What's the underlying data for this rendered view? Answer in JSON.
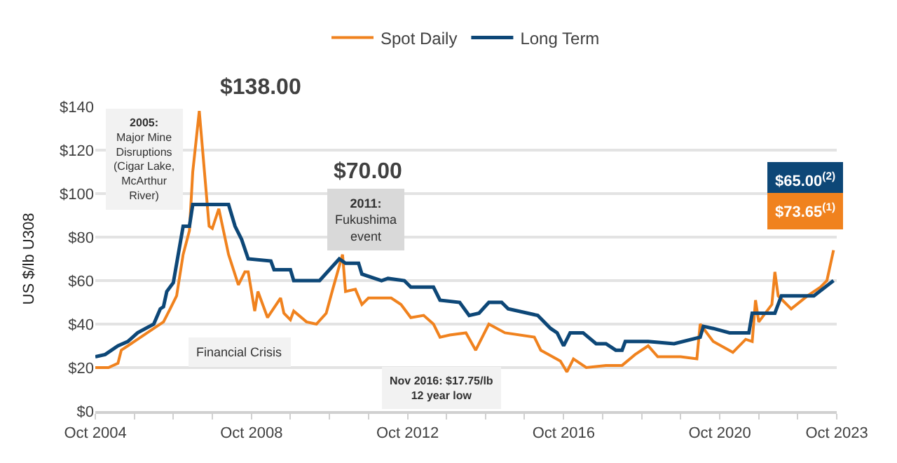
{
  "chart_data": {
    "type": "line",
    "ylabel": "US $/lb U308",
    "xlim": [
      "2004-10-01",
      "2023-10-01"
    ],
    "xticks": [
      {
        "value": "2004-10-01",
        "label": "Oct 2004"
      },
      {
        "value": "2005-10-01",
        "label": null
      },
      {
        "value": "2006-10-01",
        "label": null
      },
      {
        "value": "2007-10-01",
        "label": null
      },
      {
        "value": "2008-10-01",
        "label": "Oct 2008"
      },
      {
        "value": "2009-10-01",
        "label": null
      },
      {
        "value": "2010-10-01",
        "label": null
      },
      {
        "value": "2011-10-01",
        "label": null
      },
      {
        "value": "2012-10-01",
        "label": "Oct 2012"
      },
      {
        "value": "2013-10-01",
        "label": null
      },
      {
        "value": "2014-10-01",
        "label": null
      },
      {
        "value": "2015-10-01",
        "label": null
      },
      {
        "value": "2016-10-01",
        "label": "Oct 2016"
      },
      {
        "value": "2017-10-01",
        "label": null
      },
      {
        "value": "2018-10-01",
        "label": null
      },
      {
        "value": "2019-10-01",
        "label": null
      },
      {
        "value": "2020-10-01",
        "label": "Oct 2020"
      },
      {
        "value": "2021-10-01",
        "label": null
      },
      {
        "value": "2022-10-01",
        "label": null
      },
      {
        "value": "2023-10-01",
        "label": "Oct 2023"
      }
    ],
    "ylim": [
      0,
      140
    ],
    "yticks": [
      {
        "value": 0,
        "label": "$0"
      },
      {
        "value": 20,
        "label": "$20"
      },
      {
        "value": 40,
        "label": "$40"
      },
      {
        "value": 60,
        "label": "$60"
      },
      {
        "value": 80,
        "label": "$80"
      },
      {
        "value": 100,
        "label": "$100"
      },
      {
        "value": 120,
        "label": "$120"
      },
      {
        "value": 140,
        "label": "$140"
      }
    ],
    "grid": "y",
    "legend": "top",
    "marker": "none",
    "line_style": "solid",
    "series": [
      {
        "name": "Spot Daily",
        "color": "#f0821e",
        "x": [
          "2004-10",
          "2005-02",
          "2005-05",
          "2005-06",
          "2005-08",
          "2005-11",
          "2006-04",
          "2006-07",
          "2006-09",
          "2006-11",
          "2007-01",
          "2007-03",
          "2007-04",
          "2007-06",
          "2007-09",
          "2007-10",
          "2007-12",
          "2008-03",
          "2008-06",
          "2008-08",
          "2008-09",
          "2008-11",
          "2008-12",
          "2009-03",
          "2009-07",
          "2009-08",
          "2009-10",
          "2009-11",
          "2010-03",
          "2010-06",
          "2010-09",
          "2010-11",
          "2011-02",
          "2011-03",
          "2011-06",
          "2011-08",
          "2011-10",
          "2012-05",
          "2012-08",
          "2012-11",
          "2013-03",
          "2013-06",
          "2013-08",
          "2013-11",
          "2014-04",
          "2014-07",
          "2014-11",
          "2015-04",
          "2016-01",
          "2016-03",
          "2016-09",
          "2016-11",
          "2017-01",
          "2017-05",
          "2017-11",
          "2018-04",
          "2018-08",
          "2018-12",
          "2019-03",
          "2019-10",
          "2020-03",
          "2020-04",
          "2020-08",
          "2021-02",
          "2021-06",
          "2021-08",
          "2021-09",
          "2021-10",
          "2022-02",
          "2022-03",
          "2022-04",
          "2022-08",
          "2023-01",
          "2023-05",
          "2023-07",
          "2023-09"
        ],
        "values": [
          20,
          20,
          22,
          28,
          30,
          33,
          38,
          41,
          47,
          53,
          72,
          83,
          110,
          138,
          85,
          84,
          93,
          72,
          58,
          64,
          64,
          46,
          55,
          43,
          52,
          45,
          42,
          46,
          41,
          40,
          45,
          56,
          72,
          55,
          56,
          49,
          52,
          52,
          49,
          43,
          44,
          40,
          34,
          35,
          36,
          28,
          40,
          36,
          34,
          28,
          23,
          18,
          24,
          20,
          21,
          21,
          26,
          30,
          25,
          25,
          24,
          40,
          32,
          27,
          33,
          32,
          51,
          41,
          49,
          64,
          53,
          47,
          53,
          57,
          60,
          74
        ]
      },
      {
        "name": "Long Term",
        "color": "#0d4777",
        "x": [
          "2004-10",
          "2005-01",
          "2005-05",
          "2005-08",
          "2005-11",
          "2006-04",
          "2006-06",
          "2006-07",
          "2006-08",
          "2006-10",
          "2007-01",
          "2007-03",
          "2007-04",
          "2008-03",
          "2008-05",
          "2008-07",
          "2008-09",
          "2009-04",
          "2009-05",
          "2009-10",
          "2009-11",
          "2010-07",
          "2011-01",
          "2011-03",
          "2011-07",
          "2011-08",
          "2012-02",
          "2012-04",
          "2012-09",
          "2012-11",
          "2013-06",
          "2013-08",
          "2014-02",
          "2014-05",
          "2014-08",
          "2014-11",
          "2015-03",
          "2015-05",
          "2016-02",
          "2016-06",
          "2016-08",
          "2016-10",
          "2016-12",
          "2017-04",
          "2017-08",
          "2017-11",
          "2018-02",
          "2018-04",
          "2018-05",
          "2018-12",
          "2019-08",
          "2020-04",
          "2020-05",
          "2020-08",
          "2021-01",
          "2021-07",
          "2021-08",
          "2022-03",
          "2022-05",
          "2023-03",
          "2023-09"
        ],
        "values": [
          25,
          26,
          30,
          32,
          36,
          40,
          47,
          48,
          55,
          59,
          85,
          85,
          95,
          95,
          85,
          79,
          70,
          69,
          65,
          65,
          60,
          60,
          70,
          68,
          68,
          63,
          60,
          61,
          60,
          57,
          57,
          51,
          50,
          44,
          45,
          50,
          50,
          47,
          44,
          38,
          36,
          30,
          36,
          36,
          31,
          31,
          28,
          28,
          32,
          32,
          31,
          34,
          39,
          38,
          36,
          36,
          45,
          45,
          53,
          53,
          60
        ]
      }
    ],
    "annotations": [
      {
        "text": "$138.00",
        "x": "2007-06",
        "y": 138
      },
      "$70.00",
      "2005:\nMajor Mine\nDisruptions\n(Cigar Lake,\nMcArthur\nRiver)",
      "Financial Crisis",
      "2011:\nFukushima\nevent",
      "Nov 2016: $17.75/lb\n12 year low",
      "$65.00$^{(2)}$",
      "$73.65$^{(1)}$"
    ]
  }
}
